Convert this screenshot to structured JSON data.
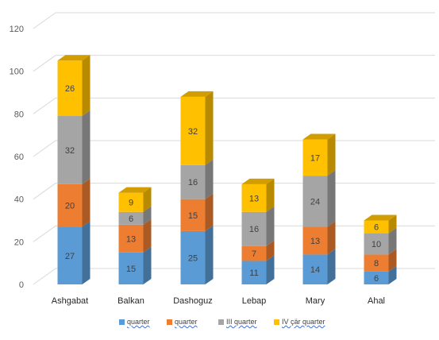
{
  "chart_data": {
    "type": "bar",
    "stacked": true,
    "style": "3d-stacked-column",
    "title": "",
    "xlabel": "",
    "ylabel": "",
    "ylim": [
      0,
      120
    ],
    "yticks": [
      0,
      20,
      40,
      60,
      80,
      100,
      120
    ],
    "grid": true,
    "legend_position": "bottom",
    "categories": [
      "Ashgabat",
      "Balkan",
      "Dashoguz",
      "Lebap",
      "Mary",
      "Ahal"
    ],
    "series": [
      {
        "name": "quarter",
        "color": "#5b9bd5",
        "values": [
          27,
          15,
          25,
          11,
          14,
          6
        ]
      },
      {
        "name": "quarter",
        "color": "#ed7d31",
        "values": [
          20,
          13,
          15,
          7,
          13,
          8
        ]
      },
      {
        "name": "III quarter",
        "color": "#a5a5a5",
        "values": [
          32,
          6,
          16,
          16,
          24,
          10
        ]
      },
      {
        "name": "IV çär quarter",
        "color": "#ffc000",
        "values": [
          26,
          9,
          32,
          13,
          17,
          6
        ]
      }
    ]
  }
}
